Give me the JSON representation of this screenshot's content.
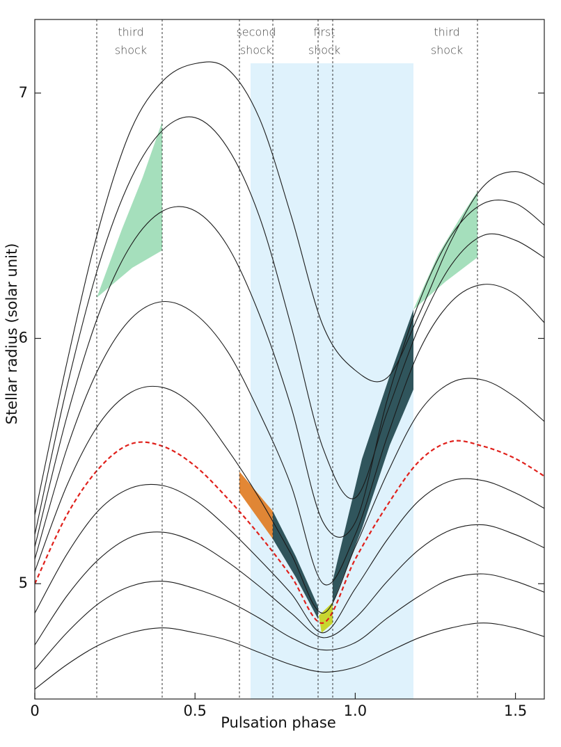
{
  "chart_data": {
    "type": "line",
    "x_label": "Pulsation phase",
    "y_label": "Stellar radius (solar unit)",
    "xlim": [
      0,
      1.59
    ],
    "ylim": [
      4.53,
      7.3
    ],
    "xticks": [
      0,
      0.5,
      {
        "value": 1,
        "label": "1.0"
      },
      1.5
    ],
    "yticks": [
      5,
      6,
      7
    ],
    "annotations": [
      {
        "lines": [
          "third",
          "shock"
        ]
      },
      {
        "lines": [
          "second",
          "shock"
        ]
      },
      {
        "lines": [
          "first",
          "shock"
        ]
      },
      {
        "lines": [
          "third",
          "shock"
        ]
      }
    ],
    "x": [
      0,
      0.1,
      0.2,
      0.3,
      0.4,
      0.5,
      0.6,
      0.7,
      0.8,
      0.9,
      1.0,
      1.1,
      1.2,
      1.3,
      1.4,
      1.5,
      1.6
    ],
    "series": [
      {
        "color": "#1a1a1a",
        "values": [
          4.57,
          4.67,
          4.75,
          4.8,
          4.82,
          4.8,
          4.77,
          4.72,
          4.67,
          4.64,
          4.66,
          4.72,
          4.78,
          4.82,
          4.84,
          4.82,
          4.78
        ]
      },
      {
        "color": "#1a1a1a",
        "values": [
          4.65,
          4.8,
          4.92,
          4.99,
          5.01,
          4.98,
          4.93,
          4.86,
          4.78,
          4.73,
          4.76,
          4.86,
          4.95,
          5.02,
          5.04,
          5.01,
          4.96
        ]
      },
      {
        "color": "#1a1a1a",
        "values": [
          4.75,
          4.95,
          5.1,
          5.19,
          5.21,
          5.17,
          5.09,
          4.99,
          4.88,
          4.78,
          4.86,
          5.01,
          5.14,
          5.22,
          5.24,
          5.2,
          5.14
        ]
      },
      {
        "color": "#1a1a1a",
        "values": [
          4.88,
          5.12,
          5.3,
          5.39,
          5.4,
          5.34,
          5.23,
          5.1,
          4.96,
          4.8,
          4.98,
          5.18,
          5.34,
          5.42,
          5.42,
          5.37,
          5.3
        ]
      },
      {
        "color": "#1a1a1a",
        "values": [
          5.05,
          5.4,
          5.65,
          5.78,
          5.8,
          5.72,
          5.55,
          5.35,
          5.12,
          4.88,
          5.15,
          5.45,
          5.7,
          5.82,
          5.83,
          5.76,
          5.65
        ]
      },
      {
        "color": "#1a1a1a",
        "values": [
          5.1,
          5.55,
          5.88,
          6.08,
          6.15,
          6.1,
          5.95,
          5.7,
          5.4,
          5.0,
          5.2,
          5.6,
          5.95,
          6.15,
          6.22,
          6.18,
          6.05
        ]
      },
      {
        "color": "#1a1a1a",
        "values": [
          5.15,
          5.68,
          6.1,
          6.38,
          6.52,
          6.52,
          6.38,
          6.1,
          5.72,
          5.25,
          5.25,
          5.75,
          6.15,
          6.42,
          6.55,
          6.55,
          6.45
        ]
      },
      {
        "color": "#1a1a1a",
        "values": [
          5.2,
          5.8,
          6.3,
          6.65,
          6.85,
          6.9,
          6.78,
          6.5,
          6.05,
          5.55,
          5.35,
          5.7,
          6.05,
          6.3,
          6.42,
          6.4,
          6.32
        ]
      },
      {
        "color": "#1a1a1a",
        "values": [
          5.28,
          5.9,
          6.45,
          6.85,
          7.05,
          7.12,
          7.1,
          6.9,
          6.5,
          6.05,
          5.87,
          5.84,
          6.1,
          6.4,
          6.62,
          6.68,
          6.62
        ]
      },
      {
        "color": "#e0201b",
        "line_style": "dashed",
        "values": [
          5.0,
          5.28,
          5.47,
          5.57,
          5.56,
          5.48,
          5.35,
          5.2,
          5.03,
          4.84,
          5.1,
          5.32,
          5.5,
          5.58,
          5.56,
          5.51,
          5.43
        ]
      }
    ]
  }
}
